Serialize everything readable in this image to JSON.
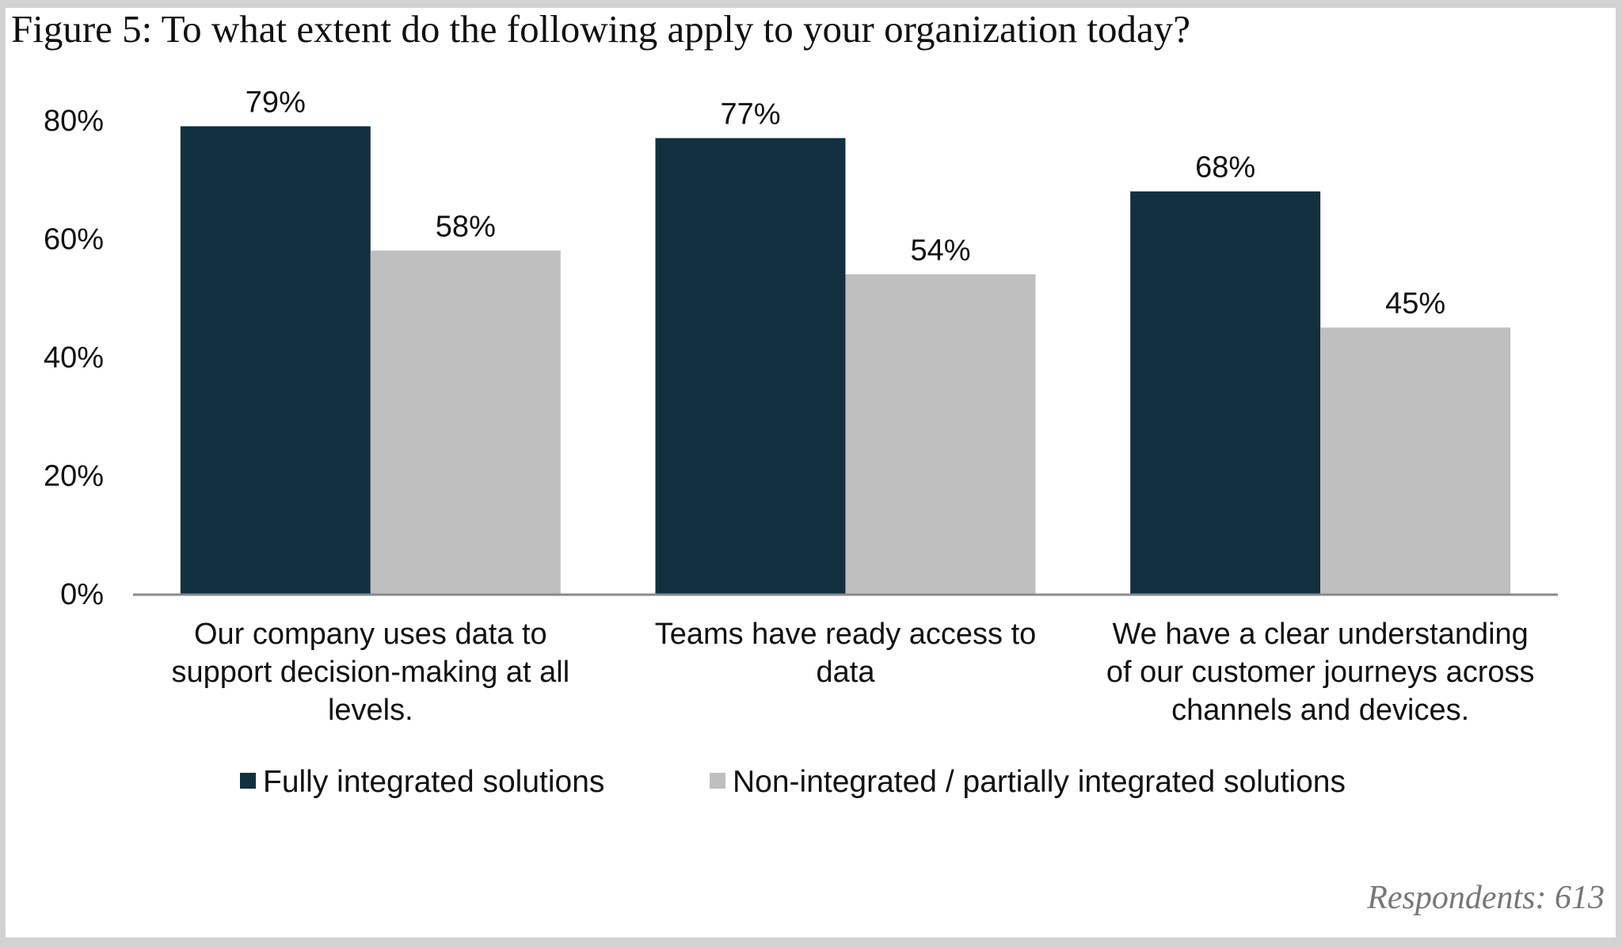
{
  "chart_data": {
    "type": "bar",
    "title": "Figure 5: To what extent do the following apply to your organization today?",
    "categories": [
      [
        "Our company uses data to",
        "support decision-making at all",
        "levels."
      ],
      [
        "Teams have ready access to",
        "data"
      ],
      [
        "We have a clear understanding",
        "of our customer journeys across",
        "channels and devices."
      ]
    ],
    "series": [
      {
        "name": "Fully integrated solutions",
        "color": "#12303f",
        "values": [
          79,
          77,
          68
        ],
        "labels": [
          "79%",
          "77%",
          "68%"
        ]
      },
      {
        "name": "Non-integrated / partially integrated solutions",
        "color": "#bfbfbf",
        "values": [
          58,
          54,
          45
        ],
        "labels": [
          "58%",
          "54%",
          "45%"
        ]
      }
    ],
    "yticks": [
      "0%",
      "20%",
      "40%",
      "60%",
      "80%"
    ],
    "ytick_values": [
      0,
      20,
      40,
      60,
      80
    ],
    "ylim": [
      0,
      80
    ],
    "grid": false,
    "legend_position": "bottom",
    "xlabel": "",
    "ylabel": "",
    "note": "Respondents: 613"
  }
}
